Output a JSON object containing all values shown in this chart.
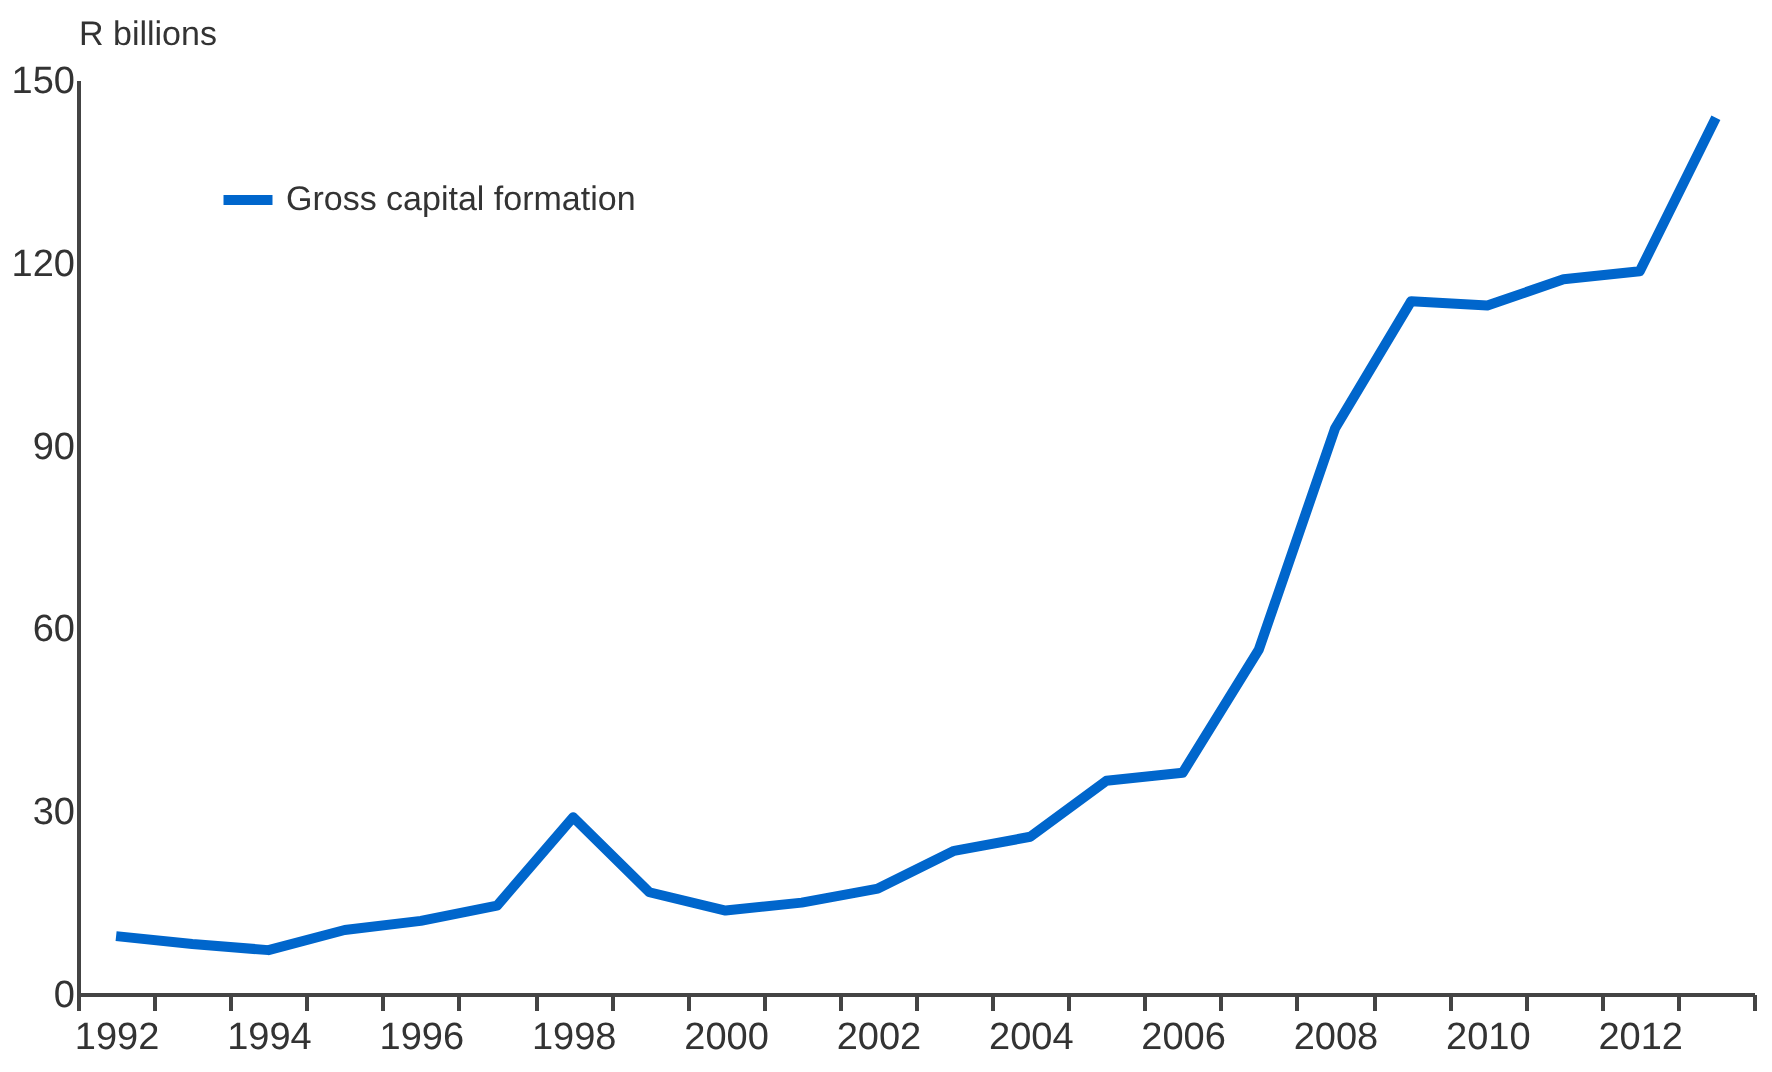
{
  "chart_data": {
    "type": "line",
    "ylabel": "R billions",
    "categories": [
      "1992",
      null,
      "1994",
      null,
      "1996",
      null,
      "1998",
      null,
      "2000",
      null,
      "2002",
      null,
      "2004",
      null,
      "2006",
      null,
      "2008",
      null,
      "2010",
      null,
      "2012",
      null
    ],
    "series": [
      {
        "name": "Gross capital formation",
        "color": "#0066cc",
        "values": [
          9.5,
          8.2,
          7.2,
          10.5,
          12,
          14.5,
          29,
          16.7,
          13.7,
          15,
          17.3,
          23.5,
          25.8,
          35,
          36.3,
          56.5,
          92.8,
          113.7,
          113,
          117.3,
          118.6,
          143.8
        ]
      }
    ],
    "ylim": [
      0,
      150
    ],
    "yticks": [
      0,
      30,
      60,
      90,
      120,
      150
    ],
    "grid": false,
    "legend": "top left",
    "line_style": "solid",
    "marker": "none"
  }
}
